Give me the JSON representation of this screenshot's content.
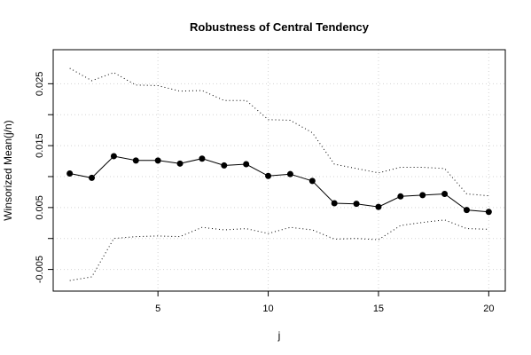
{
  "chart_data": {
    "type": "line",
    "title": "Robustness of Central Tendency",
    "xlabel": "j",
    "ylabel": "Winsorized Mean(j/n)",
    "xlim": [
      0.25,
      20.75
    ],
    "ylim": [
      -0.0085,
      0.0305
    ],
    "x_ticks": [
      5,
      10,
      15,
      20
    ],
    "x_tick_labels": [
      "5",
      "10",
      "15",
      "20"
    ],
    "y_ticks": [
      -0.005,
      0.0,
      0.005,
      0.01,
      0.015,
      0.02,
      0.025
    ],
    "y_tick_labels": [
      "-0.005",
      "",
      "0.005",
      "",
      "0.015",
      "",
      "0.025"
    ],
    "grid": true,
    "x": [
      1,
      2,
      3,
      4,
      5,
      6,
      7,
      8,
      9,
      10,
      11,
      12,
      13,
      14,
      15,
      16,
      17,
      18,
      19,
      20
    ],
    "series": [
      {
        "role": "mean",
        "style": "line-points",
        "color": "#000000",
        "values": [
          0.0105,
          0.0098,
          0.0133,
          0.0126,
          0.0126,
          0.0121,
          0.0129,
          0.0118,
          0.012,
          0.0101,
          0.0104,
          0.0093,
          0.0057,
          0.0056,
          0.0051,
          0.0068,
          0.007,
          0.0072,
          0.0046,
          0.0043
        ]
      },
      {
        "role": "upper-bound",
        "style": "dotted",
        "color": "#000000",
        "values": [
          0.0275,
          0.0255,
          0.0268,
          0.0248,
          0.0247,
          0.0238,
          0.0239,
          0.0223,
          0.0223,
          0.0192,
          0.0191,
          0.0171,
          0.012,
          0.0113,
          0.0106,
          0.0115,
          0.0115,
          0.0113,
          0.0072,
          0.0069
        ]
      },
      {
        "role": "lower-bound",
        "style": "dotted",
        "color": "#000000",
        "values": [
          -0.0068,
          -0.0062,
          0.0,
          0.0003,
          0.0004,
          0.0003,
          0.0018,
          0.0014,
          0.0016,
          0.0008,
          0.0018,
          0.0014,
          -0.0001,
          0.0,
          -0.0002,
          0.0021,
          0.0026,
          0.003,
          0.0016,
          0.0015
        ]
      }
    ]
  }
}
